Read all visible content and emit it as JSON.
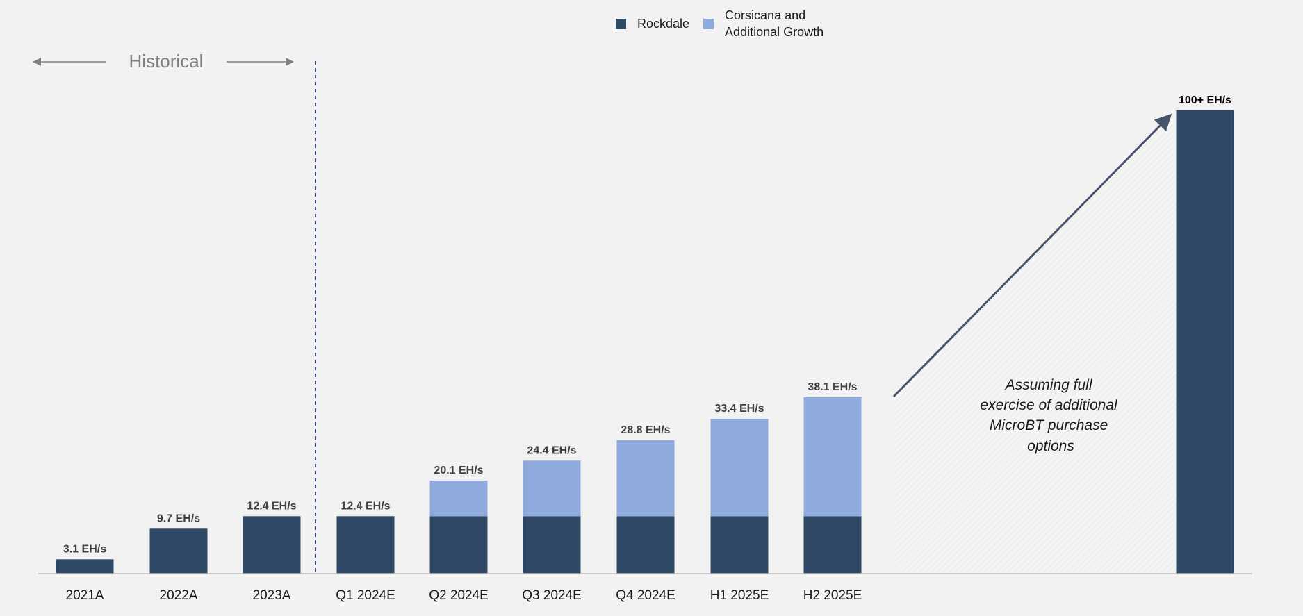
{
  "colors": {
    "rockdale": "#2f4866",
    "corsicana": "#8faadc",
    "background": "#f2f2f2",
    "axis": "#bfbfbf",
    "divider": "#2f4a8a",
    "arrow": "#44546a",
    "historical_text": "#808080"
  },
  "legend": [
    {
      "label": "Rockdale",
      "color": "#2f4866"
    },
    {
      "label": "Corsicana and\nAdditional Growth",
      "color": "#8faadc"
    }
  ],
  "historical_label": "Historical",
  "annotation": "Assuming full exercise of additional MicroBT purchase options",
  "annotation_lines": [
    "Assuming full",
    "exercise of additional",
    "MicroBT purchase",
    "options"
  ],
  "chart_data": {
    "type": "bar",
    "stacked": true,
    "unit": "EH/s",
    "categories": [
      "2021A",
      "2022A",
      "2023A",
      "Q1 2024E",
      "Q2 2024E",
      "Q3 2024E",
      "Q4 2024E",
      "H1 2025E",
      "H2 2025E",
      ""
    ],
    "series": [
      {
        "name": "Rockdale",
        "values": [
          3.1,
          9.7,
          12.4,
          12.4,
          12.4,
          12.4,
          12.4,
          12.4,
          12.4,
          100
        ]
      },
      {
        "name": "Corsicana and Additional Growth",
        "values": [
          0,
          0,
          0,
          0,
          7.7,
          12.0,
          16.4,
          21.0,
          25.7,
          0
        ]
      }
    ],
    "data_labels": [
      "3.1 EH/s",
      "9.7 EH/s",
      "12.4 EH/s",
      "12.4 EH/s",
      "20.1 EH/s",
      "24.4 EH/s",
      "28.8 EH/s",
      "33.4 EH/s",
      "38.1 EH/s",
      "100+ EH/s"
    ],
    "ylim": [
      0,
      100
    ],
    "grid": false,
    "legend_position": "top-center"
  }
}
